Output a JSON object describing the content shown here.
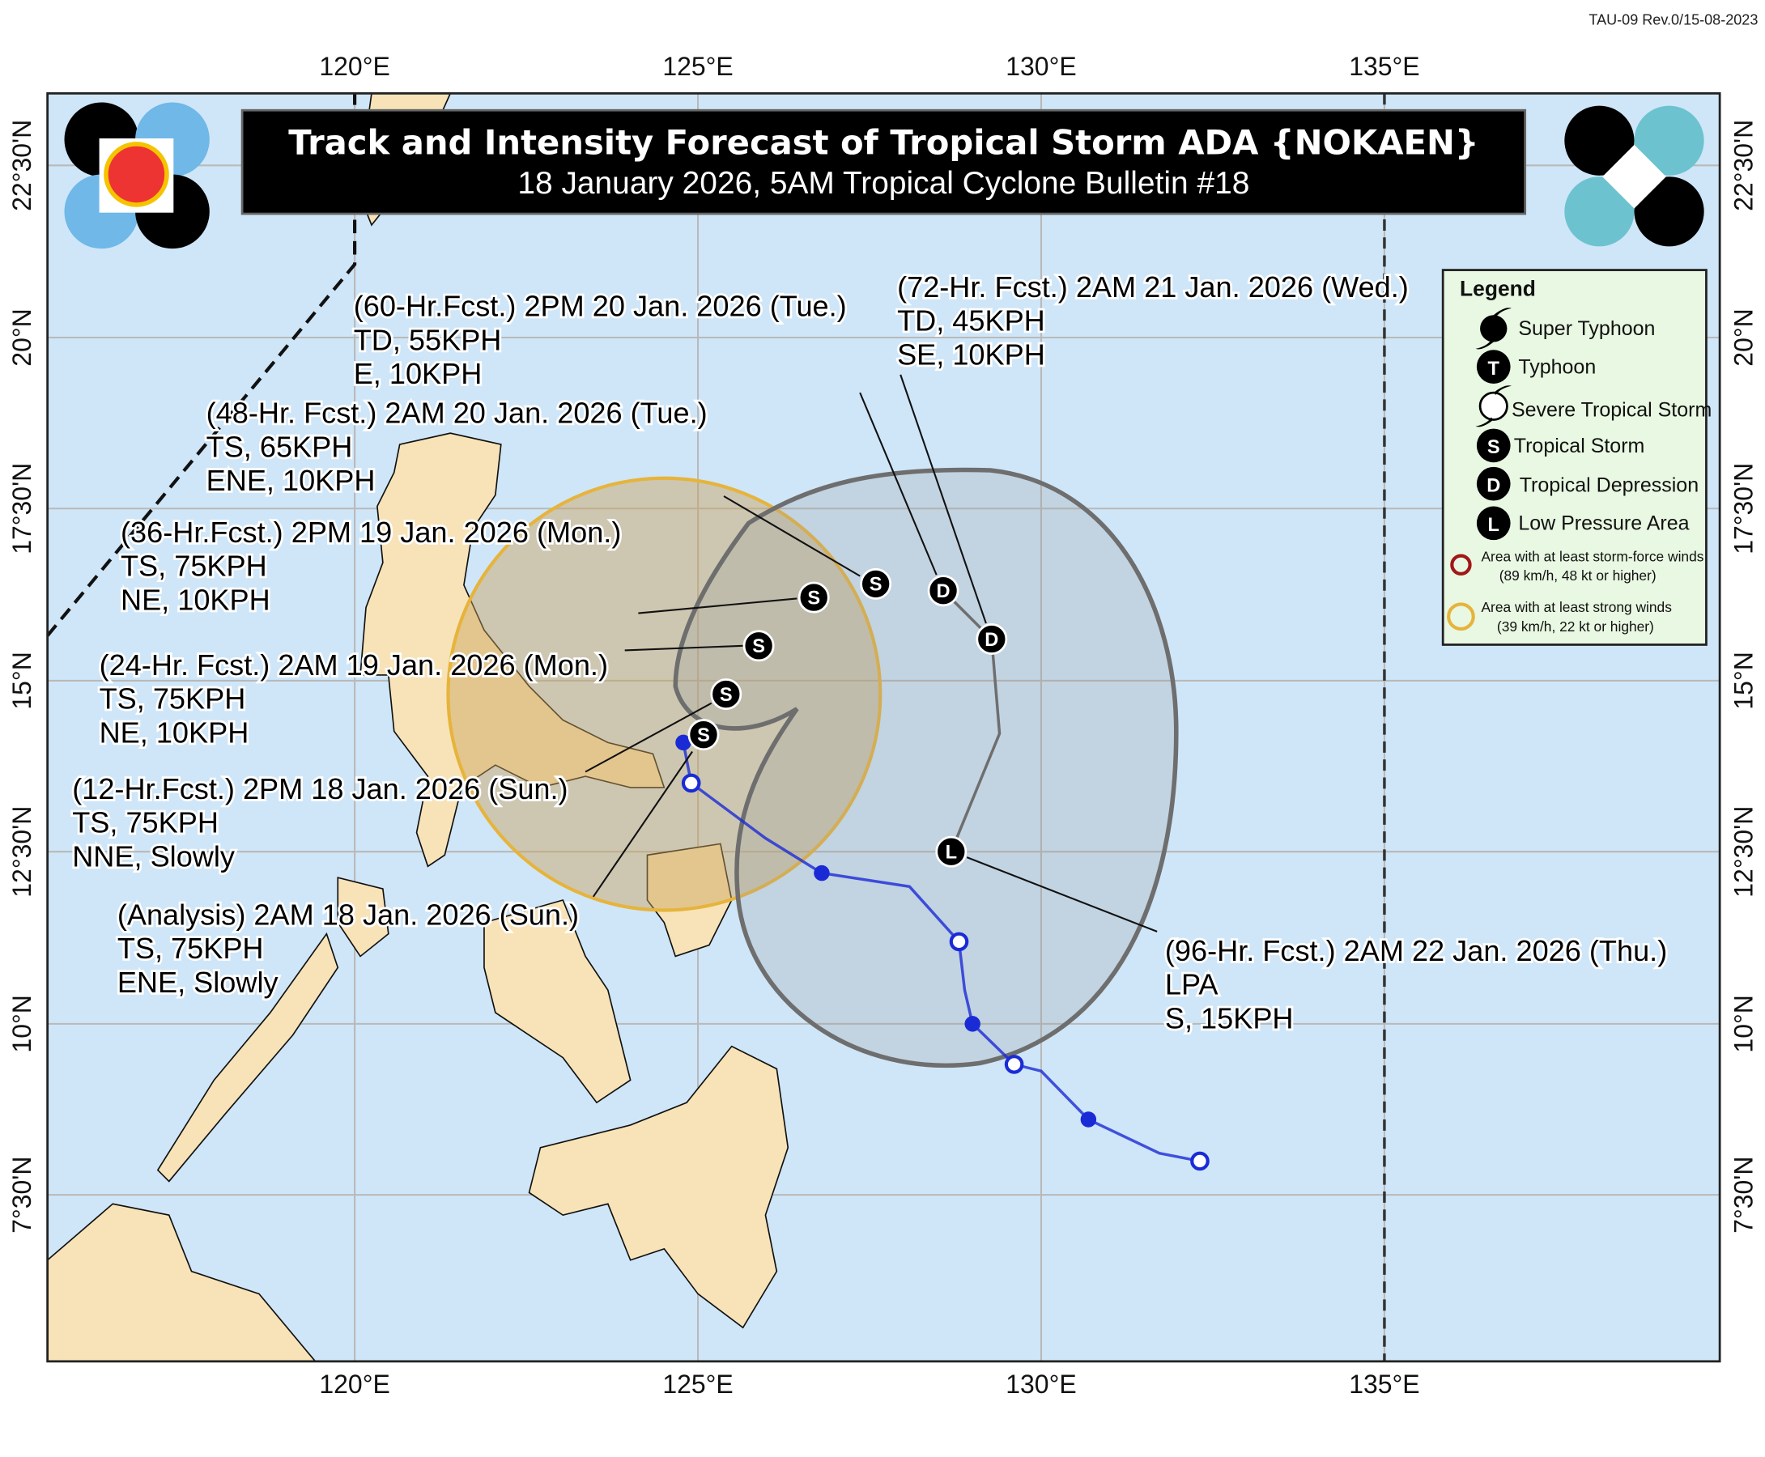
{
  "form_code": "TAU-09 Rev.0/15-08-2023",
  "title": "Track and Intensity Forecast of Tropical Storm ADA {NOKAEN}",
  "subtitle": "18 January 2026, 5AM Tropical Cyclone Bulletin #18",
  "axes": {
    "lon_labels": [
      "120°E",
      "125°E",
      "130°E",
      "135°E"
    ],
    "lat_labels": [
      "22°30'N",
      "20°N",
      "17°30'N",
      "15°N",
      "12°30'N",
      "10°N",
      "7°30'N"
    ]
  },
  "forecast_points": [
    {
      "lines": [
        "(Analysis) 2AM 18 Jan. 2026 (Sun.)",
        "TS, 75KPH",
        "ENE, Slowly"
      ],
      "symbol": "S",
      "lat": 14.3,
      "lon": 125.1
    },
    {
      "lines": [
        "(12-Hr.Fcst.) 2PM 18 Jan. 2026 (Sun.)",
        "TS, 75KPH",
        "NNE, Slowly"
      ],
      "symbol": "S",
      "lat": 14.9,
      "lon": 125.4
    },
    {
      "lines": [
        "(24-Hr. Fcst.) 2AM 19 Jan. 2026 (Mon.)",
        "TS, 75KPH",
        "NE, 10KPH"
      ],
      "symbol": "S",
      "lat": 15.6,
      "lon": 125.9
    },
    {
      "lines": [
        "(36-Hr.Fcst.) 2PM 19 Jan. 2026 (Mon.)",
        "TS, 75KPH",
        "NE, 10KPH"
      ],
      "symbol": "S",
      "lat": 16.3,
      "lon": 126.7
    },
    {
      "lines": [
        "(48-Hr. Fcst.) 2AM 20 Jan. 2026 (Tue.)",
        "TS, 65KPH",
        "ENE, 10KPH"
      ],
      "symbol": "S",
      "lat": 16.5,
      "lon": 127.6
    },
    {
      "lines": [
        "(60-Hr.Fcst.) 2PM 20 Jan. 2026 (Tue.)",
        "TD, 55KPH",
        "E, 10KPH"
      ],
      "symbol": "D",
      "lat": 16.4,
      "lon": 128.6
    },
    {
      "lines": [
        "(72-Hr. Fcst.) 2AM 21 Jan. 2026 (Wed.)",
        "TD, 45KPH",
        "SE, 10KPH"
      ],
      "symbol": "D",
      "lat": 15.7,
      "lon": 129.3
    },
    {
      "lines": [
        "(96-Hr. Fcst.) 2AM 22 Jan. 2026 (Thu.)",
        "LPA",
        "S, 15KPH"
      ],
      "symbol": "L",
      "lat": 12.5,
      "lon": 128.7
    }
  ],
  "legend": {
    "title": "Legend",
    "items": [
      {
        "symbol": "super-typhoon",
        "label": "Super Typhoon"
      },
      {
        "symbol": "T",
        "label": "Typhoon"
      },
      {
        "symbol": "severe-tropical-storm",
        "label": "Severe Tropical Storm"
      },
      {
        "symbol": "S",
        "label": "Tropical Storm"
      },
      {
        "symbol": "D",
        "label": "Tropical Depression"
      },
      {
        "symbol": "L",
        "label": "Low Pressure Area"
      }
    ],
    "storm_force": {
      "line1": "Area with at least storm-force winds",
      "line2": "(89 km/h, 48 kt or higher)",
      "color": "#a01818"
    },
    "strong_winds": {
      "line1": "Area with at least strong winds",
      "line2": "(39 km/h, 22 kt or higher)",
      "color": "#e6b43c"
    }
  },
  "colors": {
    "ocean": "#cfe6f8",
    "land": "#f8e3b8",
    "past_track": "#1a2bd6",
    "cone": "#6e6e6e"
  }
}
